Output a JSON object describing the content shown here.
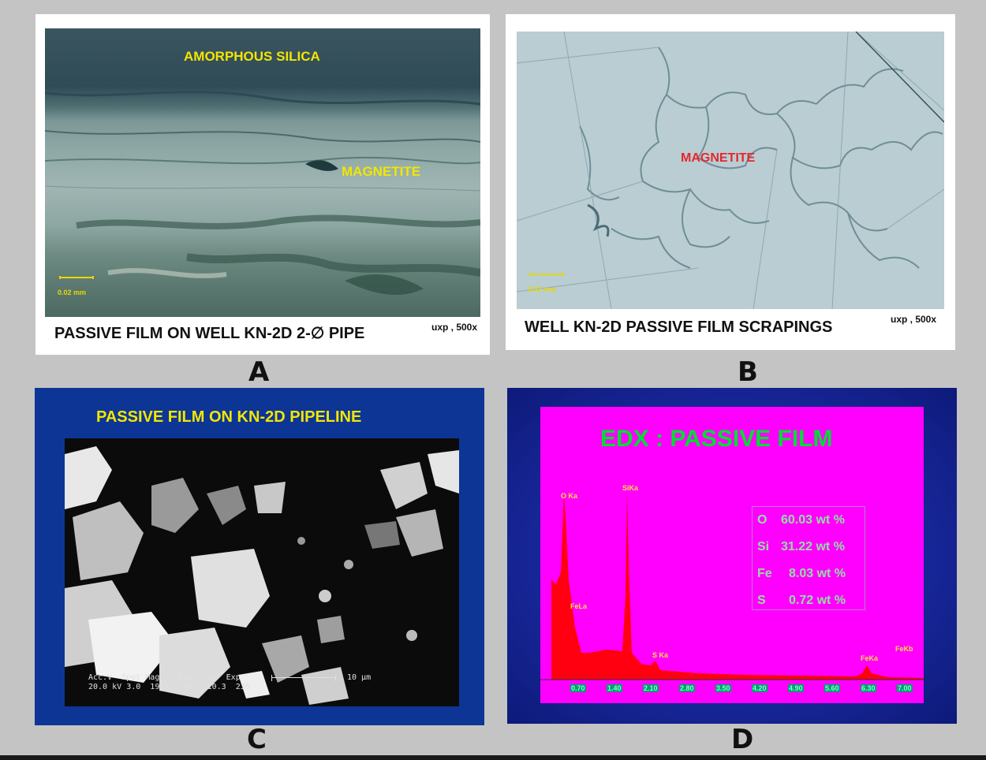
{
  "panels": {
    "a": {
      "letter": "A",
      "label_top": "AMORPHOUS SILICA",
      "label_mid": "MAGNETITE",
      "scale": "0.02 mm",
      "caption": "PASSIVE FILM ON WELL KN-2D  2-∅ PIPE",
      "magnification": "uxp , 500x"
    },
    "b": {
      "letter": "B",
      "label": "MAGNETITE",
      "scale": "0.02 mm",
      "caption": "WELL KN-2D PASSIVE FILM SCRAPINGS",
      "magnification": "uxp , 500x"
    },
    "c": {
      "letter": "C",
      "title": "PASSIVE FILM ON KN-2D PIPELINE",
      "databar": {
        "headers": [
          "Acc.V",
          "Spot",
          "Magn",
          "Det",
          "WD",
          "Exp"
        ],
        "values": [
          "20.0 kV",
          "3.0",
          "1937x",
          "SE",
          "10.3",
          "236"
        ],
        "scale": "10 µm"
      }
    },
    "d": {
      "letter": "D",
      "title": "EDX :  PASSIVE FILM",
      "peaks": [
        "O Ka",
        "SiKa",
        "FeLa",
        "S Ka",
        "FeKa",
        "FeKb"
      ],
      "composition": [
        {
          "el": "O",
          "val": "60.03 wt %"
        },
        {
          "el": "Si",
          "val": "31.22 wt %"
        },
        {
          "el": "Fe",
          "val": "8.03 wt %"
        },
        {
          "el": "S",
          "val": "0.72 wt %"
        }
      ],
      "ticks": [
        "0.70",
        "1.40",
        "2.10",
        "2.80",
        "3.50",
        "4.20",
        "4.90",
        "5.60",
        "6.30",
        "7.00"
      ]
    }
  },
  "colors": {
    "frame": "#c4c4c4",
    "edx_bg": "#ff00ff",
    "edx_title": "#00dd33",
    "sem_bg": "#0c3596",
    "label_yellow": "#f2e600",
    "label_red": "#e8262e"
  }
}
